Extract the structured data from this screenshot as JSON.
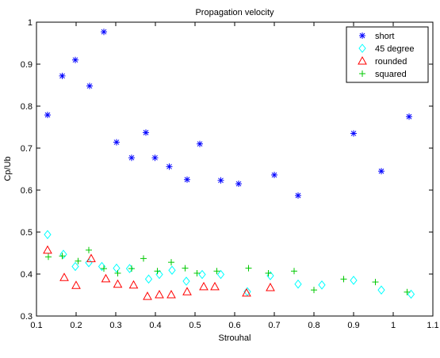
{
  "chart_data": {
    "type": "scatter",
    "title": "Propagation velocity",
    "xlabel": "Strouhal",
    "ylabel": "Cp/Ub",
    "xlim": [
      0.1,
      1.1
    ],
    "ylim": [
      0.3,
      1.0
    ],
    "xticks": [
      0.1,
      0.2,
      0.3,
      0.4,
      0.5,
      0.6,
      0.7,
      0.8,
      0.9,
      1.0,
      1.1
    ],
    "xtick_labels": [
      "0.1",
      "0.2",
      "0.3",
      "0.4",
      "0.5",
      "0.6",
      "0.7",
      "0.8",
      "0.9",
      "1",
      "1.1"
    ],
    "yticks": [
      0.3,
      0.4,
      0.5,
      0.6,
      0.7,
      0.8,
      0.9,
      1.0
    ],
    "ytick_labels": [
      "0.3",
      "0.4",
      "0.5",
      "0.6",
      "0.7",
      "0.8",
      "0.9",
      "1"
    ],
    "grid": false,
    "legend_position": "top-right",
    "series": [
      {
        "name": "short",
        "marker": "asterisk",
        "color": "#0000ff",
        "x": [
          0.128,
          0.165,
          0.198,
          0.234,
          0.27,
          0.302,
          0.34,
          0.376,
          0.399,
          0.435,
          0.48,
          0.512,
          0.565,
          0.61,
          0.7,
          0.76,
          0.9,
          0.97,
          1.04
        ],
        "y": [
          0.779,
          0.872,
          0.91,
          0.848,
          0.977,
          0.714,
          0.677,
          0.737,
          0.677,
          0.656,
          0.625,
          0.71,
          0.623,
          0.615,
          0.636,
          0.587,
          0.735,
          0.645,
          0.775
        ]
      },
      {
        "name": "45 degree",
        "marker": "diamond",
        "color": "#00ffff",
        "x": [
          0.128,
          0.168,
          0.198,
          0.232,
          0.265,
          0.302,
          0.335,
          0.383,
          0.41,
          0.442,
          0.478,
          0.518,
          0.565,
          0.632,
          0.69,
          0.76,
          0.82,
          0.9,
          0.97,
          1.045
        ],
        "y": [
          0.494,
          0.447,
          0.418,
          0.427,
          0.418,
          0.414,
          0.413,
          0.388,
          0.399,
          0.409,
          0.383,
          0.399,
          0.399,
          0.358,
          0.396,
          0.376,
          0.374,
          0.385,
          0.362,
          0.352
        ]
      },
      {
        "name": "rounded",
        "marker": "triangle",
        "color": "#ff0000",
        "x": [
          0.128,
          0.17,
          0.2,
          0.238,
          0.275,
          0.305,
          0.345,
          0.38,
          0.41,
          0.44,
          0.48,
          0.522,
          0.55,
          0.63,
          0.69
        ],
        "y": [
          0.457,
          0.392,
          0.373,
          0.437,
          0.389,
          0.376,
          0.374,
          0.347,
          0.351,
          0.351,
          0.358,
          0.37,
          0.37,
          0.355,
          0.368
        ]
      },
      {
        "name": "squared",
        "marker": "plus",
        "color": "#00c800",
        "x": [
          0.13,
          0.165,
          0.205,
          0.232,
          0.27,
          0.305,
          0.34,
          0.37,
          0.405,
          0.44,
          0.475,
          0.505,
          0.555,
          0.635,
          0.685,
          0.75,
          0.8,
          0.875,
          0.955,
          1.035
        ],
        "y": [
          0.441,
          0.443,
          0.431,
          0.457,
          0.413,
          0.402,
          0.413,
          0.437,
          0.407,
          0.428,
          0.414,
          0.402,
          0.407,
          0.414,
          0.402,
          0.407,
          0.362,
          0.388,
          0.381,
          0.357
        ]
      }
    ]
  }
}
